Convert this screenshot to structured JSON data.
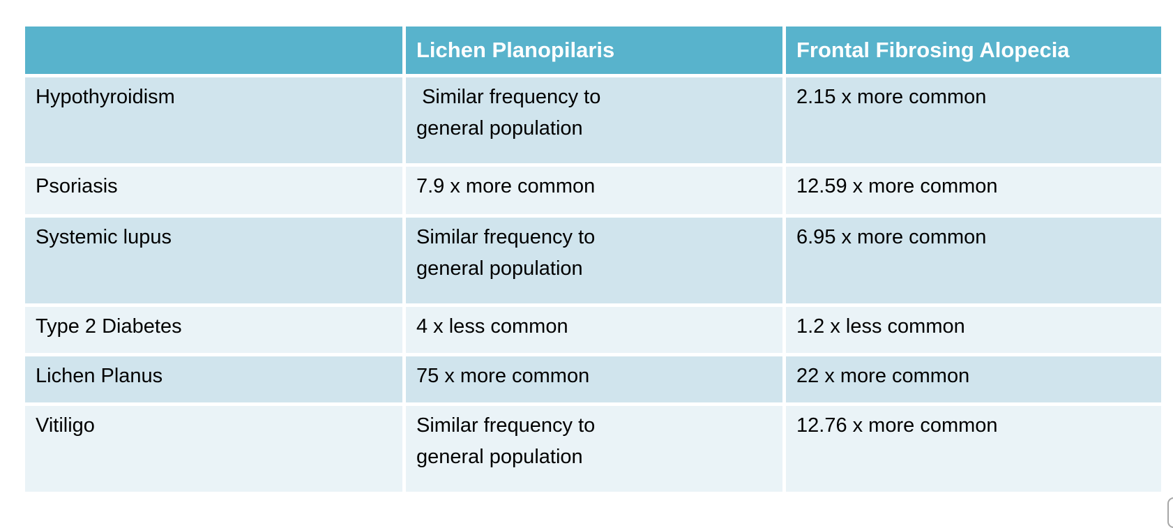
{
  "table": {
    "header": {
      "corner": "",
      "lpp": "Lichen Planopilaris",
      "ffa": "Frontal Fibrosing Alopecia"
    },
    "rows": [
      {
        "condition": "Hypothyroidism",
        "lpp": " Similar frequency to\ngeneral population",
        "ffa": "2.15 x more common"
      },
      {
        "condition": "Psoriasis",
        "lpp": "7.9 x more common",
        "ffa": "12.59 x more common"
      },
      {
        "condition": "Systemic lupus",
        "lpp": "Similar frequency to\ngeneral population",
        "ffa": "6.95 x more common"
      },
      {
        "condition": "Type 2 Diabetes",
        "lpp": "4 x less common",
        "ffa": "1.2 x less common"
      },
      {
        "condition": "Lichen Planus",
        "lpp": "75 x more common",
        "ffa": "22 x more common"
      },
      {
        "condition": "Vitiligo",
        "lpp": "Similar frequency to\ngeneral population",
        "ffa": "12.76 x more common"
      }
    ],
    "colors": {
      "header_bg": "#58b3cc",
      "header_text": "#ffffff",
      "row_odd_bg": "#d0e4ed",
      "row_even_bg": "#eaf3f7",
      "body_text": "#000000",
      "gap": "#ffffff"
    }
  }
}
